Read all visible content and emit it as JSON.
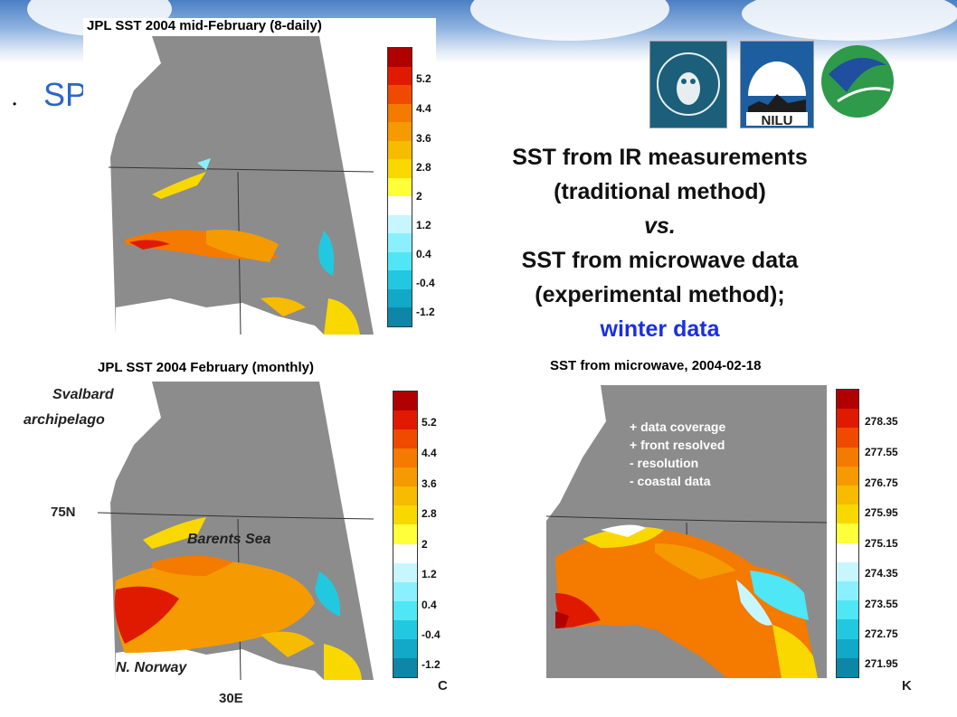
{
  "slide": {
    "bullet": "•",
    "heading_fragment": "SP",
    "title_lines": [
      "SST from IR measurements",
      "(traditional method)"
    ],
    "vs": "vs.",
    "title_lines2": [
      "SST from microwave data",
      "(experimental method);"
    ],
    "winter": "winter data"
  },
  "panels": {
    "top_left_title": "JPL SST 2004 mid-February (8-daily)",
    "bottom_left_title": "JPL SST 2004 February (monthly)",
    "right_title": "SST from microwave, 2004-02-18"
  },
  "labels": {
    "svalbard": "Svalbard",
    "archipelago": "archipelago",
    "lat": "75N",
    "barents": "Barents Sea",
    "norway": "N. Norway",
    "lon": "30E",
    "unit_c": "C",
    "unit_k": "K"
  },
  "notes": [
    "+ data coverage",
    "+ front resolved",
    "- resolution",
    "- coastal data"
  ],
  "colorbar_c": [
    "5.2",
    "4.4",
    "3.6",
    "2.8",
    "2",
    "1.2",
    "0.4",
    "-0.4",
    "-1.2"
  ],
  "colorbar_k": [
    "278.35",
    "277.55",
    "276.75",
    "275.95",
    "275.15",
    "274.35",
    "273.55",
    "272.75",
    "271.95"
  ],
  "colors": {
    "land": "#ffffff",
    "ocean_nodata": "#8c8c8c",
    "scale": [
      "#b00000",
      "#e01a00",
      "#f04a00",
      "#f47a00",
      "#f59a00",
      "#f7bb00",
      "#f9d800",
      "#ffff3a",
      "#ffffff",
      "#c8f6ff",
      "#8af0ff",
      "#4fe6f5",
      "#22c8e0",
      "#12a8c8",
      "#0e86a8"
    ]
  },
  "logos": [
    "bergen-owl-logo",
    "nilu-logo",
    "globe-swirl-logo"
  ]
}
